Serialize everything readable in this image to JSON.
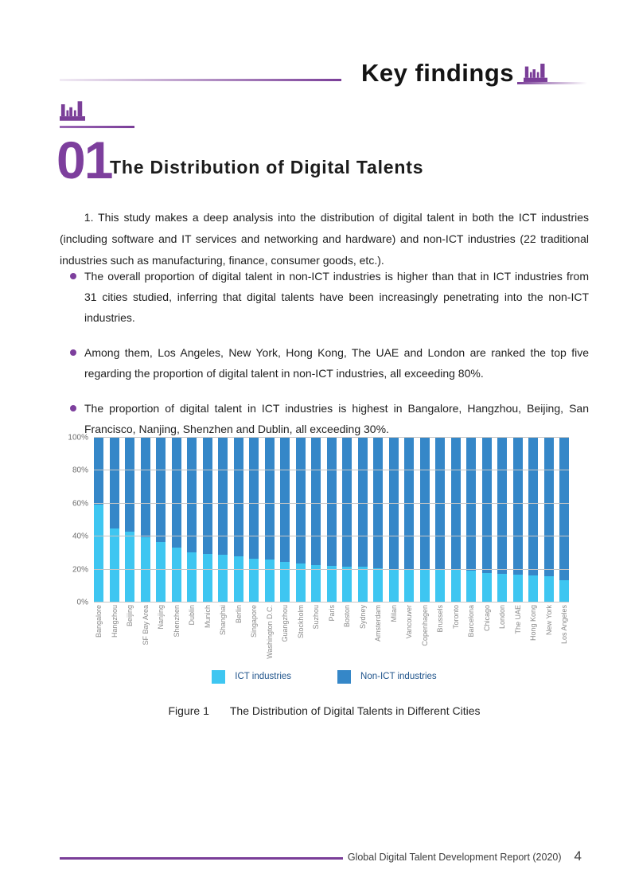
{
  "page": {
    "header": {
      "title": "Key findings"
    },
    "section": {
      "number": "01",
      "title": "The Distribution of Digital Talents"
    },
    "intro": "1.  This study makes a deep analysis into the distribution of digital talent in both the ICT industries (including software and IT services and networking and hardware) and non-ICT industries (22 traditional industries such as manufacturing, finance, consumer goods, etc.).",
    "bullets": [
      "The overall proportion of digital talent in non-ICT industries is higher than that in ICT industries from 31 cities studied, inferring that digital talents have been increasingly penetrating into the non-ICT industries.",
      "Among them, Los Angeles, New York, Hong Kong, The UAE and London are ranked the top five regarding the proportion of digital talent in non-ICT industries, all exceeding 80%.",
      "The proportion of digital talent in ICT industries is highest in Bangalore, Hangzhou, Beijing, San Francisco, Nanjing, Shenzhen and Dublin, all exceeding 30%."
    ],
    "figure_caption": {
      "label": "Figure 1",
      "text": "The Distribution of Digital Talents in Different Cities"
    },
    "footer": {
      "text": "Global Digital Talent Development Report (2020)",
      "page_number": "4"
    }
  },
  "colors": {
    "accent_purple": "#7a3e98",
    "ict_blue": "#3ec6f1",
    "non_ict_blue": "#3587c8",
    "gridline": "#c6c6c6",
    "axis_text": "#8a8a8a",
    "legend_text": "#21558c"
  },
  "chart_data": {
    "type": "bar",
    "stacked": true,
    "title": "",
    "xlabel": "",
    "ylabel": "",
    "ylim": [
      0,
      100
    ],
    "yticks": [
      "0%",
      "20%",
      "40%",
      "60%",
      "80%",
      "100%"
    ],
    "grid": true,
    "legend_position": "bottom",
    "categories": [
      "Bangalore",
      "Hangzhou",
      "Beijing",
      "SF Bay Area",
      "Nanjing",
      "Shenzhen",
      "Dublin",
      "Munich",
      "Shanghai",
      "Berlin",
      "Singapore",
      "Washington D.C.",
      "Guangzhou",
      "Stockholm",
      "Suzhou",
      "Paris",
      "Boston",
      "Sydney",
      "Amsterdam",
      "Milan",
      "Vancouver",
      "Copenhagen",
      "Brussels",
      "Toronto",
      "Barcelona",
      "Chicago",
      "London",
      "The UAE",
      "Hong Kong",
      "New York",
      "Los Angeles"
    ],
    "series": [
      {
        "name": "ICT industries",
        "color": "#3ec6f1",
        "values": [
          59.5,
          45,
          43,
          39.5,
          36.5,
          33.5,
          30.5,
          29.5,
          29,
          28,
          26.5,
          26,
          24.5,
          23.5,
          22.5,
          22,
          21.5,
          21.5,
          21,
          20.5,
          20.5,
          20,
          20,
          20,
          19.5,
          18,
          17.5,
          17,
          16.5,
          16,
          13.5
        ]
      },
      {
        "name": "Non-ICT industries",
        "color": "#3587c8",
        "values": [
          40.5,
          55,
          57,
          60.5,
          63.5,
          66.5,
          69.5,
          70.5,
          71,
          72,
          73.5,
          74,
          75.5,
          76.5,
          77.5,
          78,
          78.5,
          78.5,
          79,
          79.5,
          79.5,
          80,
          80,
          80,
          80.5,
          82,
          82.5,
          83,
          83.5,
          84,
          86.5
        ]
      }
    ]
  }
}
